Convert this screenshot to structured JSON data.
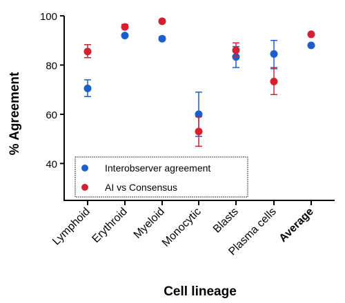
{
  "chart_data": {
    "type": "scatter",
    "title": "",
    "xlabel": "Cell lineage",
    "ylabel": "% Agreement",
    "categories": [
      "Lymphoid",
      "Erythroid",
      "Myeloid",
      "Monocytic",
      "Blasts",
      "Plasma cells",
      "Average"
    ],
    "bold_categories": [
      "Average"
    ],
    "ylim": [
      25,
      100
    ],
    "yticks": [
      40,
      60,
      80,
      100
    ],
    "grid": false,
    "legend_position": "bottom-left",
    "series": [
      {
        "name": "Interobserver agreement",
        "color": "#1a5fcc",
        "values": [
          70.5,
          92,
          90.7,
          60,
          83.3,
          84.5,
          88
        ],
        "err_low": [
          67.2,
          91.5,
          90,
          51,
          79,
          78.5,
          87.5
        ],
        "err_high": [
          74,
          92.5,
          91.5,
          69,
          87.5,
          90,
          88.5
        ]
      },
      {
        "name": "AI vs Consensus",
        "color": "#d42030",
        "values": [
          85.5,
          95.5,
          97.8,
          53,
          86,
          73.3,
          92.5
        ],
        "err_low": [
          83,
          95,
          97.2,
          47,
          83.5,
          68,
          92
        ],
        "err_high": [
          88.3,
          96.5,
          98.5,
          59,
          89,
          79,
          93
        ]
      }
    ]
  }
}
